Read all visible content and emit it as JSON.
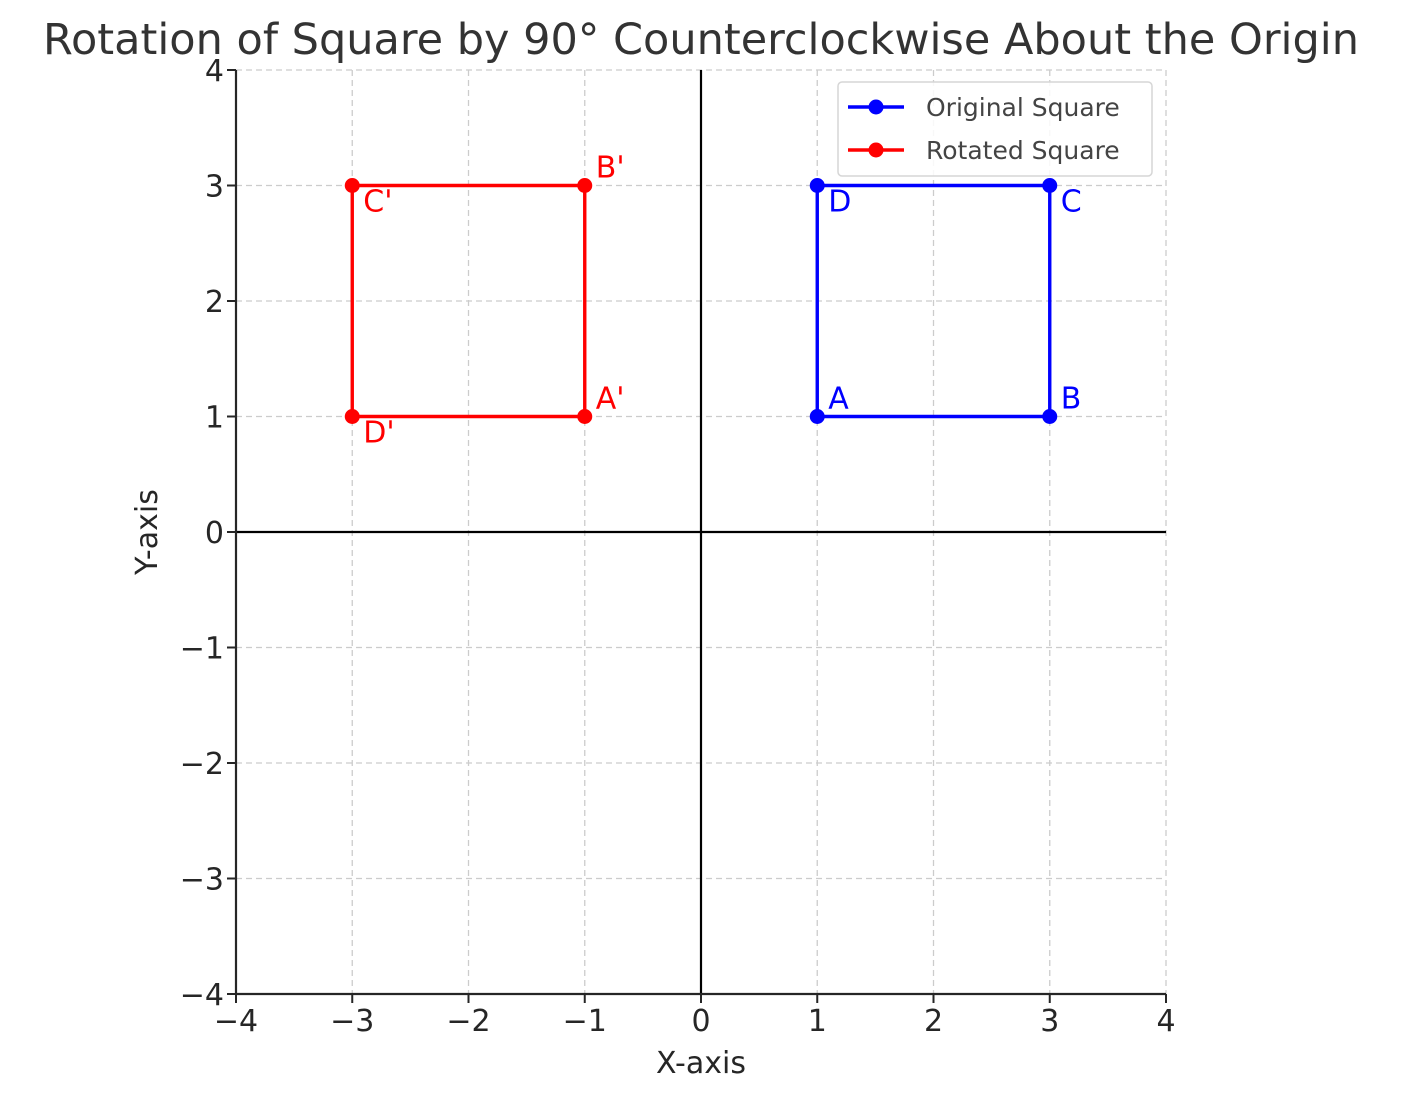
{
  "chart_data": {
    "type": "line",
    "title": "Rotation of Square by 90° Counterclockwise About the Origin",
    "xlabel": "X-axis",
    "ylabel": "Y-axis",
    "xlim": [
      -4,
      4
    ],
    "ylim": [
      -4,
      4
    ],
    "xticks": [
      -4,
      -3,
      -2,
      -1,
      0,
      1,
      2,
      3,
      4
    ],
    "yticks": [
      -4,
      -3,
      -2,
      -1,
      0,
      1,
      2,
      3,
      4
    ],
    "xtick_labels": [
      "−4",
      "−3",
      "−2",
      "−1",
      "0",
      "1",
      "2",
      "3",
      "4"
    ],
    "ytick_labels": [
      "−4",
      "−3",
      "−2",
      "−1",
      "0",
      "1",
      "2",
      "3",
      "4"
    ],
    "grid": true,
    "grid_style": "dashed",
    "origin_axes": true,
    "legend_position": "top-right",
    "series": [
      {
        "name": "Original Square",
        "color": "#0000ff",
        "x": [
          1,
          3,
          3,
          1,
          1
        ],
        "y": [
          1,
          1,
          3,
          3,
          1
        ],
        "points": [
          {
            "label": "A",
            "x": 1,
            "y": 1,
            "anchor": "above-right"
          },
          {
            "label": "B",
            "x": 3,
            "y": 1,
            "anchor": "above-right"
          },
          {
            "label": "C",
            "x": 3,
            "y": 3,
            "anchor": "below-right"
          },
          {
            "label": "D",
            "x": 1,
            "y": 3,
            "anchor": "below-right"
          }
        ]
      },
      {
        "name": "Rotated Square",
        "color": "#ff0000",
        "x": [
          -1,
          -1,
          -3,
          -3,
          -1
        ],
        "y": [
          1,
          3,
          3,
          1,
          1
        ],
        "points": [
          {
            "label": "A'",
            "x": -1,
            "y": 1,
            "anchor": "above-right"
          },
          {
            "label": "B'",
            "x": -1,
            "y": 3,
            "anchor": "above-right"
          },
          {
            "label": "C'",
            "x": -3,
            "y": 3,
            "anchor": "below-right"
          },
          {
            "label": "D'",
            "x": -3,
            "y": 1,
            "anchor": "below-right"
          }
        ]
      }
    ]
  }
}
